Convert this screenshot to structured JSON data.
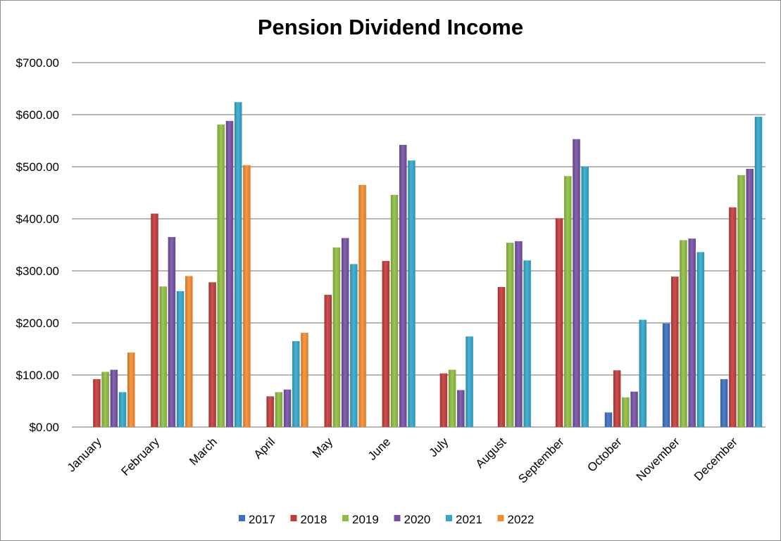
{
  "chart_data": {
    "type": "bar",
    "title": "Pension Dividend Income",
    "xlabel": "",
    "ylabel": "",
    "ylim": [
      0,
      700
    ],
    "y_ticks": [
      "$0.00",
      "$100.00",
      "$200.00",
      "$300.00",
      "$400.00",
      "$500.00",
      "$600.00",
      "$700.00"
    ],
    "grid": true,
    "legend_position": "bottom",
    "categories": [
      "January",
      "February",
      "March",
      "April",
      "May",
      "June",
      "July",
      "August",
      "September",
      "October",
      "November",
      "December"
    ],
    "series": [
      {
        "name": "2017",
        "color": "#3a6fc0",
        "values": [
          0,
          0,
          0,
          0,
          0,
          0,
          0,
          0,
          0,
          28,
          199,
          92
        ]
      },
      {
        "name": "2018",
        "color": "#c43a39",
        "values": [
          92,
          410,
          278,
          59,
          254,
          319,
          103,
          269,
          401,
          109,
          289,
          422
        ]
      },
      {
        "name": "2019",
        "color": "#8ebe3f",
        "values": [
          106,
          270,
          581,
          67,
          345,
          446,
          110,
          354,
          482,
          57,
          359,
          484
        ]
      },
      {
        "name": "2020",
        "color": "#7450a4",
        "values": [
          110,
          365,
          588,
          72,
          363,
          542,
          71,
          357,
          553,
          68,
          362,
          496
        ]
      },
      {
        "name": "2021",
        "color": "#2fa8cc",
        "values": [
          67,
          261,
          624,
          165,
          313,
          512,
          174,
          320,
          500,
          206,
          336,
          596
        ]
      },
      {
        "name": "2022",
        "color": "#f68b2c",
        "values": [
          143,
          290,
          503,
          181,
          465,
          0,
          0,
          0,
          0,
          0,
          0,
          0
        ]
      }
    ]
  }
}
